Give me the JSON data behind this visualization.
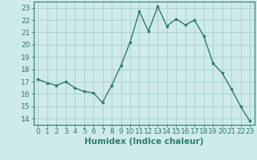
{
  "x": [
    0,
    1,
    2,
    3,
    4,
    5,
    6,
    7,
    8,
    9,
    10,
    11,
    12,
    13,
    14,
    15,
    16,
    17,
    18,
    19,
    20,
    21,
    22,
    23
  ],
  "y": [
    17.2,
    16.9,
    16.7,
    17.0,
    16.5,
    16.2,
    16.1,
    15.3,
    16.7,
    18.3,
    20.2,
    22.7,
    21.1,
    23.1,
    21.5,
    22.1,
    21.6,
    22.0,
    20.7,
    18.5,
    17.7,
    16.4,
    15.0,
    13.8
  ],
  "line_color": "#2e7d6e",
  "marker": "o",
  "marker_size": 2.2,
  "bg_color": "#ceeaea",
  "grid_color": "#aacfcf",
  "tick_color": "#2e7d6e",
  "xlabel": "Humidex (Indice chaleur)",
  "ylabel_ticks": [
    14,
    15,
    16,
    17,
    18,
    19,
    20,
    21,
    22,
    23
  ],
  "xlim": [
    -0.5,
    23.5
  ],
  "ylim": [
    13.5,
    23.5
  ],
  "xticks": [
    0,
    1,
    2,
    3,
    4,
    5,
    6,
    7,
    8,
    9,
    10,
    11,
    12,
    13,
    14,
    15,
    16,
    17,
    18,
    19,
    20,
    21,
    22,
    23
  ],
  "xtick_labels": [
    "0",
    "1",
    "2",
    "3",
    "4",
    "5",
    "6",
    "7",
    "8",
    "9",
    "10",
    "11",
    "12",
    "13",
    "14",
    "15",
    "16",
    "17",
    "18",
    "19",
    "20",
    "21",
    "22",
    "23"
  ],
  "axis_color": "#2e7d6e",
  "label_fontsize": 7.5,
  "tick_fontsize": 6.5,
  "linewidth": 1.0
}
